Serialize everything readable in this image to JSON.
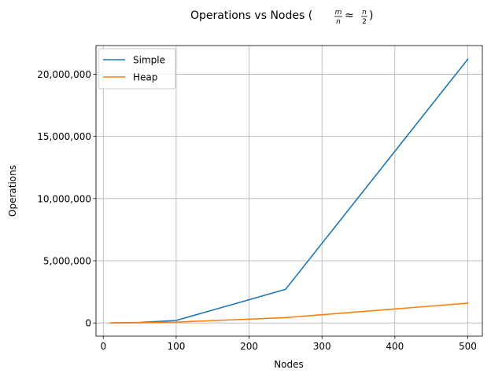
{
  "chart_data": {
    "type": "line",
    "title": "Operations vs Nodes (m/n ≈ n/2)",
    "title_parts": {
      "prefix": "Operations vs Nodes (",
      "frac1_num": "m",
      "frac1_den": "n",
      "approx": "≈",
      "frac2_num": "n",
      "frac2_den": "2",
      "suffix": ")"
    },
    "xlabel": "Nodes",
    "ylabel": "Operations",
    "xlim": [
      -10,
      520
    ],
    "ylim": [
      -1060000,
      22300000
    ],
    "xticks": [
      0,
      100,
      200,
      300,
      400,
      500
    ],
    "xtick_labels": [
      "0",
      "100",
      "200",
      "300",
      "400",
      "500"
    ],
    "yticks": [
      0,
      5000000,
      10000000,
      15000000,
      20000000
    ],
    "ytick_labels": [
      "0",
      "5,000,000",
      "10,000,000",
      "15,000,000",
      "20,000,000"
    ],
    "grid": true,
    "legend_position": "top-left",
    "series": [
      {
        "name": "Simple",
        "color": "#1f77b4",
        "x": [
          10,
          50,
          100,
          250,
          500
        ],
        "y": [
          2000,
          40000,
          200000,
          2700000,
          21200000
        ]
      },
      {
        "name": "Heap",
        "color": "#ff7f0e",
        "x": [
          10,
          50,
          100,
          250,
          500
        ],
        "y": [
          1000,
          20000,
          70000,
          430000,
          1590000
        ]
      }
    ]
  }
}
